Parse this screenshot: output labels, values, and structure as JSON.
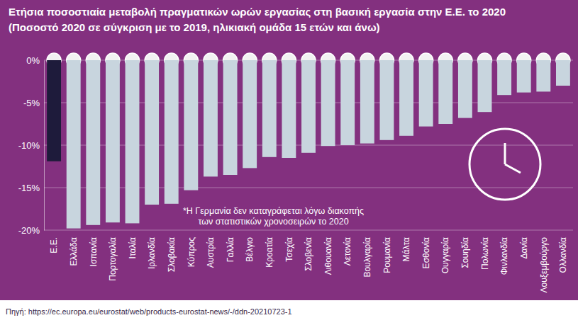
{
  "chart_data": {
    "type": "bar",
    "title": "Ετήσια ποσοστιαία μεταβολή πραγματικών ωρών εργασίας στη βασική εργασία στην Ε.Ε. το 2020",
    "subtitle": "(Ποσοστό 2020 σε σύγκριση με το 2019, ηλικιακή ομάδα 15 ετών και άνω)",
    "categories": [
      "Ε.Ε.",
      "Ελλάδα",
      "Ισπανία",
      "Πορτογαλία",
      "Ιταλία",
      "Ιρλανδία",
      "Σλοβακία",
      "Κύπρος",
      "Αυστρία",
      "Γαλλία",
      "Βέλγιο",
      "Κροατία",
      "Τσεχία",
      "Σλοβενία",
      "Λιθουανία",
      "Λετονία",
      "Βουλγαρία",
      "Ρουμανία",
      "Μάλτα",
      "Εσθονία",
      "Ουγγαρία",
      "Σουηδία",
      "Πολωνία",
      "Φινλανδία",
      "Δανία",
      "Λουξεμβούργο",
      "Ολλανδία"
    ],
    "values": [
      -11.9,
      -19.8,
      -19.4,
      -19.1,
      -19.2,
      -17.0,
      -16.9,
      -15.3,
      -13.7,
      -13.5,
      -12.7,
      -11.4,
      -11.5,
      -10.9,
      -10.1,
      -10.0,
      -9.8,
      -9.4,
      -8.9,
      -7.8,
      -7.5,
      -6.8,
      -6.1,
      -4.1,
      -3.8,
      -3.7,
      -3.0
    ],
    "colors": [
      "#1e1b3b",
      "#c8d5de",
      "#c8d5de",
      "#c8d5de",
      "#c8d5de",
      "#c8d5de",
      "#c8d5de",
      "#c8d5de",
      "#c8d5de",
      "#c8d5de",
      "#c8d5de",
      "#c8d5de",
      "#c8d5de",
      "#c8d5de",
      "#c8d5de",
      "#c8d5de",
      "#c8d5de",
      "#c8d5de",
      "#c8d5de",
      "#c8d5de",
      "#c8d5de",
      "#c8d5de",
      "#c8d5de",
      "#c8d5de",
      "#c8d5de",
      "#c8d5de",
      "#c8d5de"
    ],
    "ylim": [
      -20,
      0
    ],
    "yticks": [
      {
        "value": 0,
        "label": "0%"
      },
      {
        "value": -5,
        "label": "-5%"
      },
      {
        "value": -10,
        "label": "-10%"
      },
      {
        "value": -15,
        "label": "-15%"
      },
      {
        "value": -20,
        "label": "-20%"
      }
    ],
    "grid": true,
    "annotations": [
      "*Η Γερμανία δεν καταγράφεται λόγω διακοπής των στατιστικών χρονοσειρών το 2020"
    ],
    "source": "Πηγή: https://ec.europa.eu/eurostat/web/products-eurostat-news/-/ddn-20210723-1"
  }
}
